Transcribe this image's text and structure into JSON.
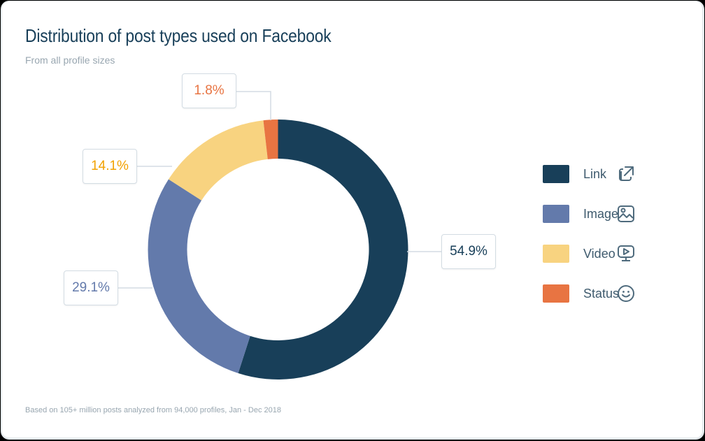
{
  "header": {
    "title": "Distribution of post types used on Facebook",
    "subtitle": "From all profile sizes"
  },
  "footnote": "Based on 105+ million posts analyzed from 94,000 profiles, Jan - Dec 2018",
  "labels": {
    "link": "54.9%",
    "image": "29.1%",
    "video": "14.1%",
    "status": "1.8%"
  },
  "legend": [
    {
      "label": "Link",
      "color": "#183f59",
      "icon": "external-link-icon"
    },
    {
      "label": "Image",
      "color": "#637aab",
      "icon": "image-icon"
    },
    {
      "label": "Video",
      "color": "#f8d380",
      "icon": "video-play-icon"
    },
    {
      "label": "Status",
      "color": "#e87442",
      "icon": "smiley-icon"
    }
  ],
  "chart_data": {
    "type": "pie",
    "variant": "donut",
    "title": "Distribution of post types used on Facebook",
    "subtitle": "From all profile sizes",
    "categories": [
      "Link",
      "Image",
      "Video",
      "Status"
    ],
    "values": [
      54.9,
      29.1,
      14.1,
      1.8
    ],
    "unit": "%",
    "colors": [
      "#183f59",
      "#637aab",
      "#f8d380",
      "#e87442"
    ],
    "legend_position": "right",
    "start_angle": "12 o'clock, clockwise",
    "note": "Based on 105+ million posts analyzed from 94,000 profiles, Jan - Dec 2018"
  }
}
